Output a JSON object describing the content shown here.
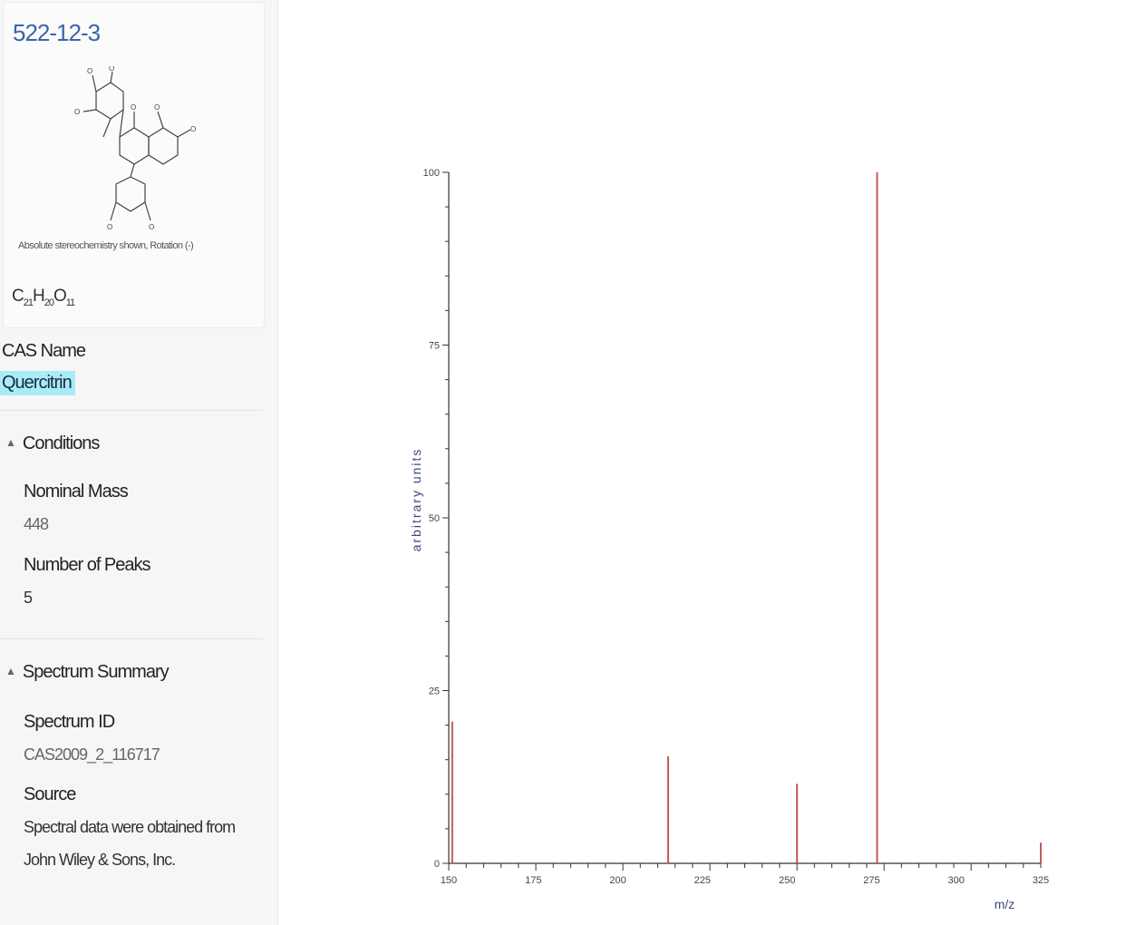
{
  "card": {
    "cas_number": "522-12-3",
    "stereo_note": "Absolute stereochemistry shown, Rotation (-)",
    "formula": {
      "c": "21",
      "h": "20",
      "o": "11"
    }
  },
  "cas_name": {
    "label": "CAS Name",
    "value": "Quercitrin"
  },
  "conditions": {
    "header": "Conditions",
    "nominal_mass_label": "Nominal Mass",
    "nominal_mass_value": "448",
    "peaks_label": "Number of Peaks",
    "peaks_value": "5"
  },
  "spectrum_summary": {
    "header": "Spectrum Summary",
    "id_label": "Spectrum ID",
    "id_value": "CAS2009_2_116717",
    "source_label": "Source",
    "source_line1": "Spectral data were obtained from",
    "source_line2": "John Wiley & Sons, Inc."
  },
  "colors": {
    "peak": "#c45a5a",
    "axis": "#333333",
    "link": "#3b64a8",
    "highlight": "#a8ecf7"
  },
  "chart_data": {
    "type": "bar",
    "title": "",
    "xlabel": "m/z",
    "ylabel": "arbitrary units",
    "xlim": [
      150,
      320
    ],
    "ylim": [
      0,
      100
    ],
    "x_ticks": [
      "150",
      "175",
      "200",
      "225",
      "250",
      "275",
      "300",
      "325"
    ],
    "y_ticks": [
      "0",
      "25",
      "50",
      "75",
      "100"
    ],
    "series": [
      {
        "x": [
          151,
          213,
          250,
          273,
          320
        ],
        "values": [
          20.5,
          15.5,
          11.5,
          100,
          3
        ]
      }
    ]
  }
}
